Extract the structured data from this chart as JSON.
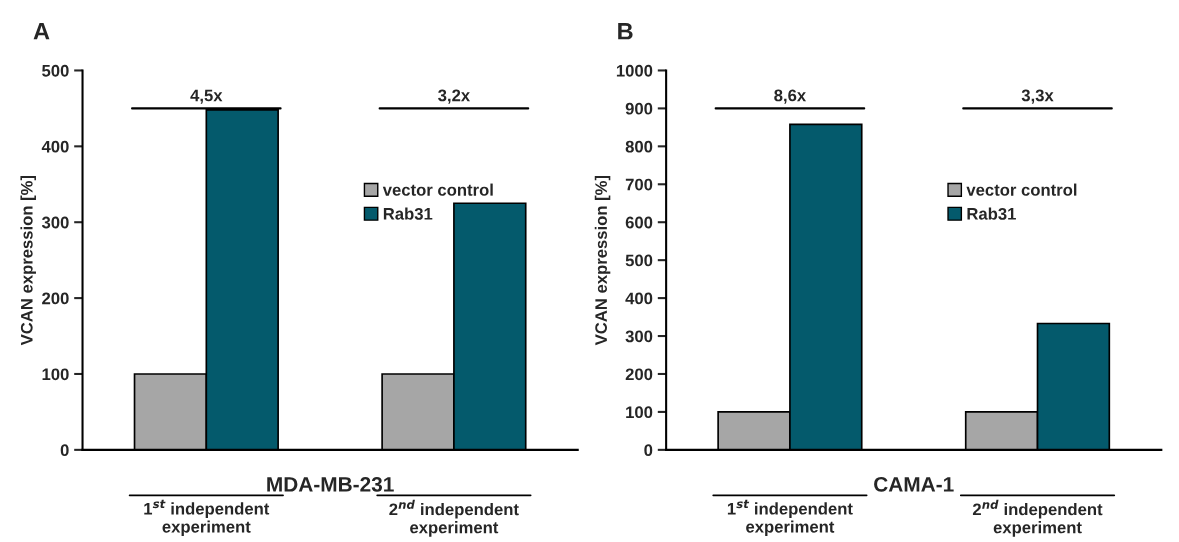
{
  "chart_data": [
    {
      "type": "bar",
      "title": "A",
      "xlabel": "MDA-MB-231",
      "ylabel": "VCAN expression [%]",
      "categories": [
        "1$^{st}$ independent\nexperiment",
        "2$^{nd}$ independent\nexperiment"
      ],
      "series": [
        {
          "name": "vector control",
          "color": "#a6a6a6",
          "values": [
            100,
            100
          ]
        },
        {
          "name": "Rab31",
          "color": "#045a6c",
          "values": [
            448,
            325
          ]
        }
      ],
      "ylim": [
        0,
        500
      ],
      "yticks": [
        0,
        100,
        200,
        300,
        400,
        500
      ],
      "legend": "center",
      "grid": false,
      "annotations": [
        "4,5x",
        "3,2x"
      ]
    },
    {
      "type": "bar",
      "title": "B",
      "xlabel": "CAMA-1",
      "ylabel": "VCAN expression [%]",
      "categories": [
        "1$^{st}$ independent\nexperiment",
        "2$^{nd}$ independent\nexperiment"
      ],
      "series": [
        {
          "name": "vector control",
          "color": "#a6a6a6",
          "values": [
            100,
            100
          ]
        },
        {
          "name": "Rab31",
          "color": "#045a6c",
          "values": [
            858,
            333
          ]
        }
      ],
      "ylim": [
        0,
        1000
      ],
      "yticks": [
        0,
        100,
        200,
        300,
        400,
        500,
        600,
        700,
        800,
        900,
        1000
      ],
      "legend": "center",
      "grid": false,
      "annotations": [
        "8,6x",
        "3,3x"
      ]
    }
  ]
}
